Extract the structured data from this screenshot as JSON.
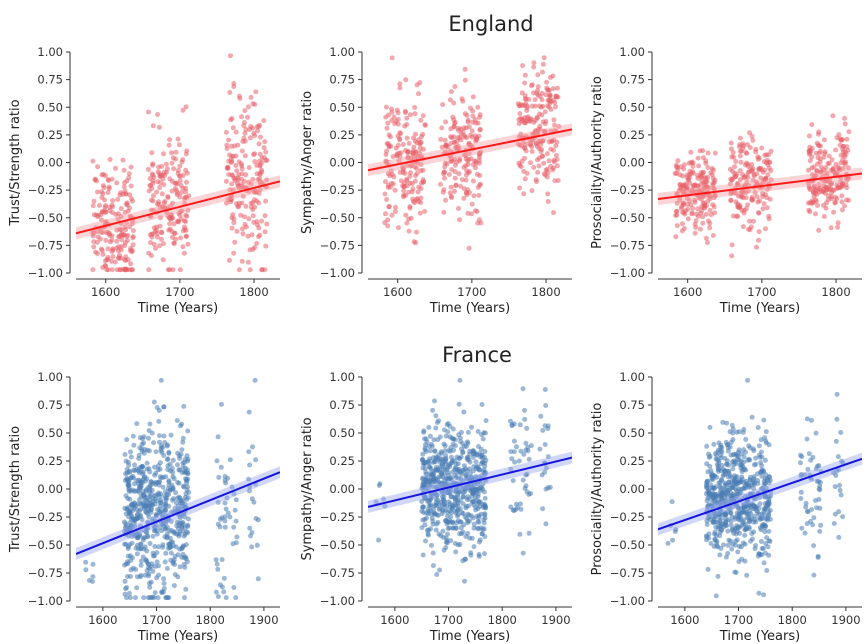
{
  "rows": [
    {
      "title": "England"
    },
    {
      "title": "France"
    }
  ],
  "colors": {
    "england_points": "#e8606a",
    "england_line": "#ff1a1a",
    "england_band": "#f4a0a4",
    "france_points": "#4a7db5",
    "france_line": "#1515e0",
    "france_band": "#9aa6f0"
  },
  "chart_data": [
    {
      "type": "scatter",
      "row": "England",
      "xlabel": "Time (Years)",
      "ylabel": "Trust/Strength ratio",
      "xlim": [
        1560,
        1835
      ],
      "ylim": [
        -1.0,
        1.0
      ],
      "xticks": [
        1600,
        1700,
        1800
      ],
      "yticks": [
        "-1.00",
        "-0.75",
        "-0.50",
        "-0.25",
        "0.00",
        "0.25",
        "0.50",
        "0.75",
        "1.00"
      ],
      "trend": {
        "x": [
          1560,
          1835
        ],
        "y": [
          -0.64,
          -0.17
        ]
      },
      "clusters": [
        {
          "center": 1610,
          "width": 55,
          "count": 190,
          "mean": -0.56,
          "spread": 0.27
        },
        {
          "center": 1685,
          "width": 55,
          "count": 180,
          "mean": -0.36,
          "spread": 0.3
        },
        {
          "center": 1790,
          "width": 55,
          "count": 200,
          "mean": -0.2,
          "spread": 0.38
        }
      ]
    },
    {
      "type": "scatter",
      "row": "England",
      "xlabel": "Time (Years)",
      "ylabel": "Sympathy/Anger ratio",
      "xlim": [
        1560,
        1835
      ],
      "ylim": [
        -1.0,
        1.0
      ],
      "xticks": [
        1600,
        1700,
        1800
      ],
      "yticks": [
        "-1.00",
        "-0.75",
        "-0.50",
        "-0.25",
        "0.00",
        "0.25",
        "0.50",
        "0.75",
        "1.00"
      ],
      "trend": {
        "x": [
          1560,
          1835
        ],
        "y": [
          -0.07,
          0.3
        ]
      },
      "clusters": [
        {
          "center": 1610,
          "width": 55,
          "count": 190,
          "mean": 0.0,
          "spread": 0.3
        },
        {
          "center": 1685,
          "width": 55,
          "count": 180,
          "mean": 0.08,
          "spread": 0.3
        },
        {
          "center": 1790,
          "width": 55,
          "count": 200,
          "mean": 0.28,
          "spread": 0.28
        }
      ]
    },
    {
      "type": "scatter",
      "row": "England",
      "xlabel": "Time (Years)",
      "ylabel": "Prosociality/Authority ratio",
      "xlim": [
        1560,
        1835
      ],
      "ylim": [
        -1.0,
        1.0
      ],
      "xticks": [
        1600,
        1700,
        1800
      ],
      "yticks": [
        "-1.00",
        "-0.75",
        "-0.50",
        "-0.25",
        "0.00",
        "0.25",
        "0.50",
        "0.75",
        "1.00"
      ],
      "trend": {
        "x": [
          1560,
          1835
        ],
        "y": [
          -0.33,
          -0.1
        ]
      },
      "clusters": [
        {
          "center": 1610,
          "width": 55,
          "count": 190,
          "mean": -0.28,
          "spread": 0.17
        },
        {
          "center": 1685,
          "width": 55,
          "count": 180,
          "mean": -0.18,
          "spread": 0.2
        },
        {
          "center": 1790,
          "width": 55,
          "count": 200,
          "mean": -0.12,
          "spread": 0.2
        }
      ]
    },
    {
      "type": "scatter",
      "row": "France",
      "xlabel": "Time (Years)",
      "ylabel": "Trust/Strength ratio",
      "xlim": [
        1550,
        1930
      ],
      "ylim": [
        -1.0,
        1.0
      ],
      "xticks": [
        1600,
        1700,
        1800,
        1900
      ],
      "yticks": [
        "-1.00",
        "-0.75",
        "-0.50",
        "-0.25",
        "0.00",
        "0.25",
        "0.50",
        "0.75",
        "1.00"
      ],
      "trend": {
        "x": [
          1550,
          1930
        ],
        "y": [
          -0.58,
          0.15
        ]
      },
      "clusters": [
        {
          "center": 1575,
          "width": 20,
          "count": 6,
          "mean": -0.82,
          "spread": 0.1
        },
        {
          "center": 1700,
          "width": 120,
          "count": 620,
          "mean": -0.22,
          "spread": 0.38
        },
        {
          "center": 1830,
          "width": 40,
          "count": 45,
          "mean": -0.2,
          "spread": 0.4
        },
        {
          "center": 1880,
          "width": 20,
          "count": 20,
          "mean": -0.15,
          "spread": 0.4
        }
      ]
    },
    {
      "type": "scatter",
      "row": "France",
      "xlabel": "Time (Years)",
      "ylabel": "Sympathy/Anger ratio",
      "xlim": [
        1550,
        1930
      ],
      "ylim": [
        -1.0,
        1.0
      ],
      "xticks": [
        1600,
        1700,
        1800,
        1900
      ],
      "yticks": [
        "-1.00",
        "-0.75",
        "-0.50",
        "-0.25",
        "0.00",
        "0.25",
        "0.50",
        "0.75",
        "1.00"
      ],
      "trend": {
        "x": [
          1550,
          1930
        ],
        "y": [
          -0.16,
          0.28
        ]
      },
      "clusters": [
        {
          "center": 1575,
          "width": 20,
          "count": 6,
          "mean": -0.05,
          "spread": 0.12
        },
        {
          "center": 1710,
          "width": 120,
          "count": 620,
          "mean": 0.02,
          "spread": 0.28
        },
        {
          "center": 1835,
          "width": 40,
          "count": 45,
          "mean": 0.15,
          "spread": 0.3
        },
        {
          "center": 1880,
          "width": 20,
          "count": 20,
          "mean": 0.2,
          "spread": 0.3
        }
      ]
    },
    {
      "type": "scatter",
      "row": "France",
      "xlabel": "Time (Years)",
      "ylabel": "Prosociality/Authority ratio",
      "xlim": [
        1550,
        1930
      ],
      "ylim": [
        -1.0,
        1.0
      ],
      "xticks": [
        1600,
        1700,
        1800,
        1900
      ],
      "yticks": [
        "-1.00",
        "-0.75",
        "-0.50",
        "-0.25",
        "0.00",
        "0.25",
        "0.50",
        "0.75",
        "1.00"
      ],
      "trend": {
        "x": [
          1550,
          1930
        ],
        "y": [
          -0.36,
          0.27
        ]
      },
      "clusters": [
        {
          "center": 1575,
          "width": 20,
          "count": 6,
          "mean": -0.35,
          "spread": 0.1
        },
        {
          "center": 1700,
          "width": 120,
          "count": 620,
          "mean": -0.08,
          "spread": 0.28
        },
        {
          "center": 1835,
          "width": 40,
          "count": 50,
          "mean": 0.0,
          "spread": 0.3
        },
        {
          "center": 1885,
          "width": 20,
          "count": 20,
          "mean": 0.1,
          "spread": 0.3
        }
      ]
    }
  ]
}
